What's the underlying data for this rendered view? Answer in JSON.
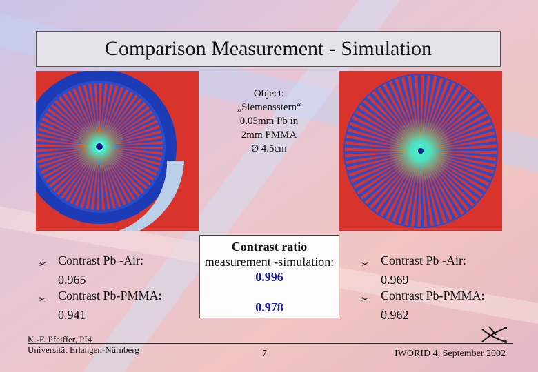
{
  "slide": {
    "title": "Comparison Measurement - Simulation",
    "object_caption": {
      "lines": [
        "Object:",
        "„Siemensstern“",
        "0.05mm Pb in",
        "2mm PMMA",
        "Ø 4.5cm"
      ]
    },
    "left_bullets": [
      {
        "label": "Contrast Pb -Air:",
        "value": "0.965"
      },
      {
        "label": "Contrast Pb-PMMA:",
        "value": "0.941"
      }
    ],
    "right_bullets": [
      {
        "label": "Contrast Pb -Air:",
        "value": "0.969"
      },
      {
        "label": "Contrast Pb-PMMA:",
        "value": "0.962"
      }
    ],
    "ratio_box": {
      "title": "Contrast ratio",
      "subtitle": "measurement -simulation:",
      "value_air": "0.996",
      "value_pmma": "0.978"
    },
    "footer": {
      "author_line1": "K.-F. Pfeiffer, PI4",
      "author_line2": "Universität Erlangen-Nürnberg",
      "page_number": "7",
      "conference": "IWORID 4, September 2002"
    },
    "bullet_icon": "scissors-icon",
    "colors": {
      "title_bg": "#e3e3e9",
      "ratio_value": "#1a1aa8",
      "image_red": "#d8342c",
      "image_blue": "#1c3bb6",
      "image_cyan": "#38e0d0"
    }
  }
}
